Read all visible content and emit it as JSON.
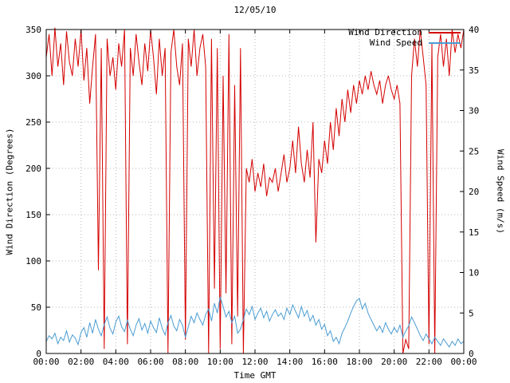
{
  "colors": {
    "background": "#ffffff",
    "border": "#000000",
    "grid": "#b4b4b4",
    "text": "#000000",
    "wind_direction": "#d40000",
    "wind_speed": "#4a9cd3"
  },
  "chart_data": {
    "type": "line",
    "title": "12/05/10",
    "xlabel": "Time GMT",
    "ylabel_left": "Wind Direction (Degrees)",
    "ylabel_right": "Wind Speed (m/s)",
    "grid": true,
    "x_range_minutes": [
      0,
      1440
    ],
    "x_ticks": [
      {
        "v": 0,
        "label": "00:00"
      },
      {
        "v": 120,
        "label": "02:00"
      },
      {
        "v": 240,
        "label": "04:00"
      },
      {
        "v": 360,
        "label": "06:00"
      },
      {
        "v": 480,
        "label": "08:00"
      },
      {
        "v": 600,
        "label": "10:00"
      },
      {
        "v": 720,
        "label": "12:00"
      },
      {
        "v": 840,
        "label": "14:00"
      },
      {
        "v": 960,
        "label": "16:00"
      },
      {
        "v": 1080,
        "label": "18:00"
      },
      {
        "v": 1200,
        "label": "20:00"
      },
      {
        "v": 1320,
        "label": "22:00"
      },
      {
        "v": 1440,
        "label": "00:00"
      }
    ],
    "y_left_range": [
      0,
      350
    ],
    "y_left_ticks": [
      0,
      50,
      100,
      150,
      200,
      250,
      300,
      350
    ],
    "y_right_range": [
      0,
      40
    ],
    "y_right_ticks": [
      0,
      5,
      10,
      15,
      20,
      25,
      30,
      35,
      40
    ],
    "legend": {
      "position": "top-right",
      "entries": [
        {
          "label": "Wind Direction",
          "color": "#d40000"
        },
        {
          "label": "Wind Speed",
          "color": "#4a9cd3"
        }
      ]
    },
    "series": [
      {
        "name": "Wind Direction",
        "axis": "left",
        "color": "#d40000",
        "x_step_minutes": 10,
        "values": [
          320,
          345,
          300,
          352,
          310,
          335,
          290,
          348,
          315,
          300,
          340,
          310,
          350,
          295,
          330,
          270,
          310,
          345,
          90,
          330,
          5,
          340,
          300,
          320,
          285,
          335,
          310,
          350,
          10,
          330,
          300,
          345,
          315,
          290,
          335,
          305,
          350,
          320,
          280,
          340,
          300,
          330,
          0,
          325,
          350,
          310,
          290,
          335,
          15,
          340,
          310,
          350,
          300,
          330,
          345,
          310,
          0,
          340,
          70,
          330,
          5,
          300,
          65,
          345,
          10,
          290,
          40,
          330,
          0,
          200,
          185,
          210,
          175,
          195,
          180,
          205,
          170,
          190,
          185,
          200,
          175,
          195,
          215,
          185,
          200,
          230,
          195,
          245,
          205,
          185,
          220,
          190,
          250,
          120,
          210,
          195,
          230,
          205,
          250,
          220,
          265,
          235,
          275,
          250,
          285,
          260,
          290,
          270,
          295,
          280,
          300,
          285,
          305,
          290,
          280,
          295,
          270,
          290,
          300,
          285,
          275,
          290,
          270,
          0,
          15,
          5,
          300,
          340,
          310,
          350,
          320,
          290,
          10,
          335,
          0,
          320,
          345,
          310,
          340,
          300,
          350,
          325,
          345,
          330,
          350
        ]
      },
      {
        "name": "Wind Speed",
        "axis": "right",
        "color": "#4a9cd3",
        "x_step_minutes": 10,
        "values": [
          1.5,
          2.2,
          1.8,
          2.5,
          1.2,
          2.0,
          1.6,
          2.8,
          1.4,
          2.3,
          1.9,
          1.1,
          2.6,
          3.2,
          2.0,
          3.8,
          2.5,
          4.2,
          3.0,
          2.2,
          3.6,
          4.5,
          3.1,
          2.4,
          3.9,
          4.6,
          3.3,
          2.7,
          4.1,
          3.0,
          2.2,
          3.5,
          4.3,
          2.9,
          3.7,
          2.5,
          4.0,
          3.2,
          2.6,
          4.4,
          3.1,
          2.3,
          3.8,
          4.7,
          3.4,
          2.8,
          4.2,
          3.5,
          2.0,
          3.3,
          4.6,
          3.8,
          5.0,
          4.2,
          3.5,
          4.8,
          5.5,
          4.0,
          6.2,
          5.0,
          7.0,
          5.8,
          4.5,
          5.2,
          3.8,
          4.6,
          2.5,
          3.0,
          4.2,
          5.5,
          4.8,
          5.8,
          4.2,
          5.0,
          5.6,
          4.4,
          5.2,
          4.0,
          4.8,
          5.4,
          4.6,
          5.0,
          4.2,
          5.6,
          4.8,
          6.0,
          5.2,
          4.4,
          5.8,
          4.6,
          5.3,
          4.0,
          4.7,
          3.5,
          4.2,
          3.0,
          3.6,
          2.2,
          2.8,
          1.5,
          2.0,
          1.2,
          2.5,
          3.2,
          4.0,
          5.0,
          5.8,
          6.5,
          6.8,
          5.5,
          6.2,
          5.0,
          4.2,
          3.5,
          2.8,
          3.4,
          2.6,
          3.8,
          3.0,
          2.4,
          3.2,
          2.6,
          3.5,
          2.0,
          2.8,
          3.4,
          4.5,
          3.8,
          3.0,
          2.2,
          1.6,
          2.4,
          1.8,
          1.2,
          2.0,
          1.5,
          1.0,
          1.8,
          1.3,
          0.8,
          1.5,
          1.0,
          1.8,
          1.2,
          1.5
        ]
      }
    ]
  }
}
